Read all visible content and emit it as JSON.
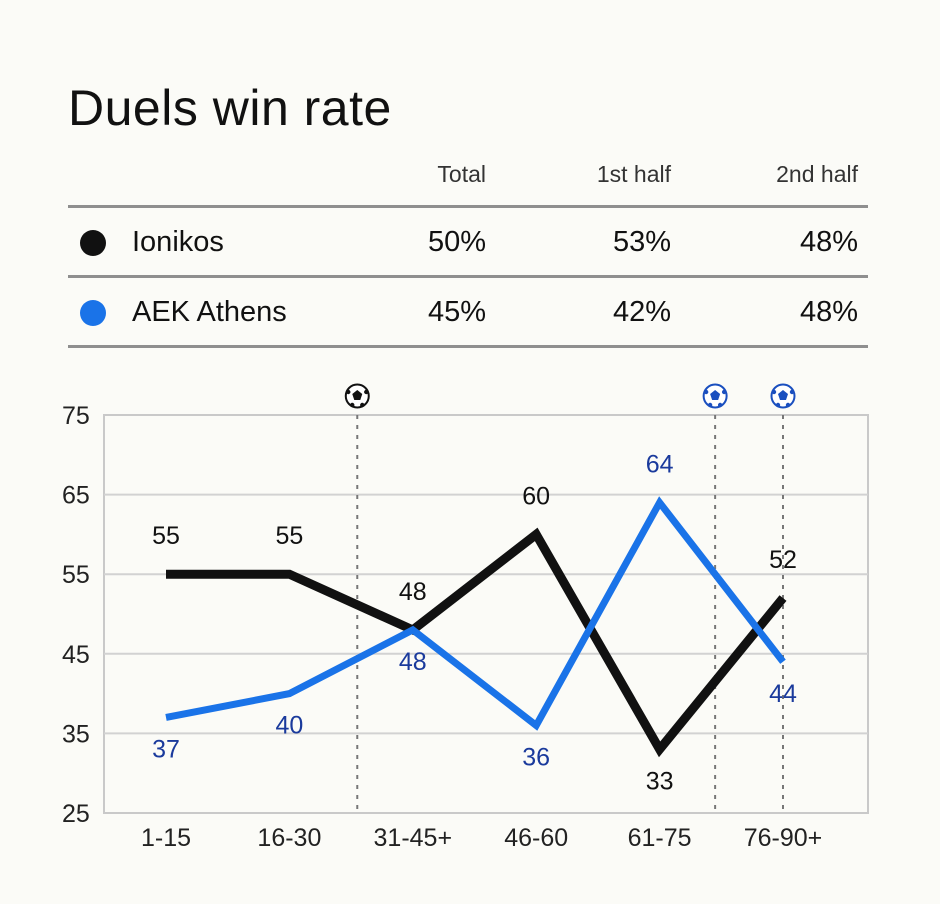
{
  "title": "Duels win rate",
  "table": {
    "headers": [
      "Total",
      "1st half",
      "2nd half"
    ],
    "rows": [
      {
        "team": "Ionikos",
        "color": "#111111",
        "total": "50%",
        "first_half": "53%",
        "second_half": "48%"
      },
      {
        "team": "AEK Athens",
        "color": "#1a73e8",
        "total": "45%",
        "first_half": "42%",
        "second_half": "48%"
      }
    ]
  },
  "chart_data": {
    "type": "line",
    "title": "",
    "categories": [
      "1-15",
      "16-30",
      "31-45+",
      "46-60",
      "61-75",
      "76-90+"
    ],
    "yticks": [
      75,
      65,
      55,
      45,
      35,
      25
    ],
    "ylim": [
      25,
      75
    ],
    "grid": true,
    "series": [
      {
        "name": "Ionikos",
        "color": "#111111",
        "label_color": "#111111",
        "values": [
          55,
          55,
          48,
          60,
          33,
          52
        ]
      },
      {
        "name": "AEK Athens",
        "color": "#1a73e8",
        "label_color": "#1a3a9c",
        "values": [
          37,
          40,
          48,
          36,
          64,
          44
        ]
      }
    ],
    "goal_markers": [
      {
        "category_index": 1.55,
        "team": "Ionikos",
        "icon": "soccer-ball-icon"
      },
      {
        "category_index": 4.45,
        "team": "AEK Athens",
        "icon": "soccer-ball-icon"
      },
      {
        "category_index": 5.0,
        "team": "AEK Athens",
        "icon": "soccer-ball-icon"
      }
    ]
  }
}
